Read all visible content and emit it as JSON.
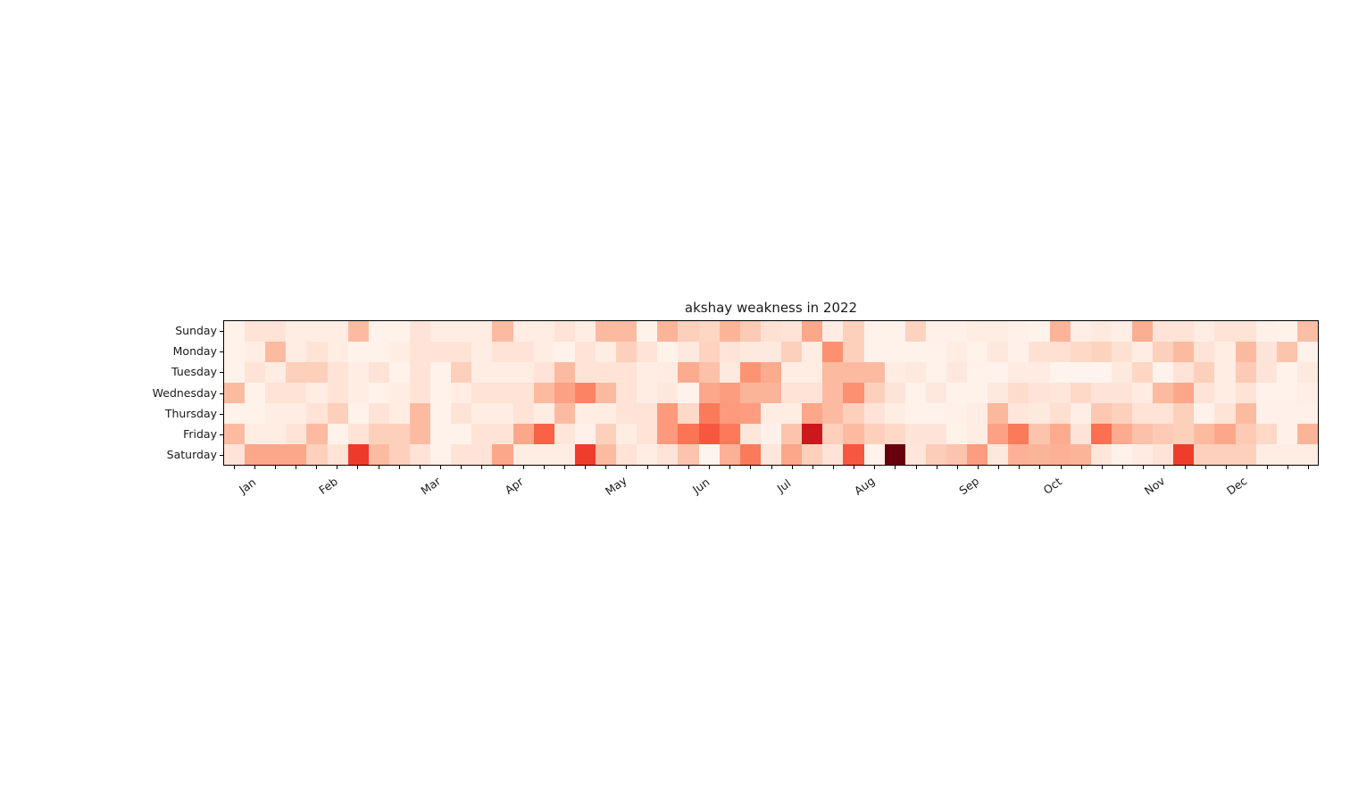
{
  "page": {
    "background_color": "#ffffff",
    "text_color": "#1a1a1a",
    "axis_color": "#000000"
  },
  "chart_data": {
    "type": "heatmap",
    "title": "akshay weakness in 2022",
    "colormap": "Reds",
    "colormap_anchors": [
      "#fff5f0",
      "#fee0d2",
      "#fcbba1",
      "#fc9272",
      "#fb6a4a",
      "#ef3b2c",
      "#cb181d",
      "#a50f15",
      "#67000d"
    ],
    "value_range": [
      0,
      1
    ],
    "grid": false,
    "rows": [
      "Sunday",
      "Monday",
      "Tuesday",
      "Wednesday",
      "Thursday",
      "Friday",
      "Saturday"
    ],
    "num_week_columns": 53,
    "x_tick_labels": [
      {
        "label": "Jan",
        "week": 1.34
      },
      {
        "label": "Feb",
        "week": 5.27
      },
      {
        "label": "Mar",
        "week": 10.24
      },
      {
        "label": "Apr",
        "week": 14.25
      },
      {
        "label": "May",
        "week": 19.22
      },
      {
        "label": "Jun",
        "week": 23.28
      },
      {
        "label": "Jul",
        "week": 27.26
      },
      {
        "label": "Aug",
        "week": 31.23
      },
      {
        "label": "Sep",
        "week": 36.28
      },
      {
        "label": "Oct",
        "week": 40.3
      },
      {
        "label": "Nov",
        "week": 45.27
      },
      {
        "label": "Dec",
        "week": 49.24
      }
    ],
    "matrix": [
      [
        0.02,
        0.11,
        0.11,
        0.05,
        0.05,
        0.05,
        0.25,
        0.02,
        0.02,
        0.11,
        0.05,
        0.05,
        0.05,
        0.25,
        0.05,
        0.05,
        0.11,
        0.05,
        0.25,
        0.25,
        0.02,
        0.27,
        0.18,
        0.16,
        0.27,
        0.2,
        0.12,
        0.11,
        0.31,
        0.05,
        0.18,
        0.02,
        0.02,
        0.17,
        0.03,
        0.03,
        0.05,
        0.05,
        0.03,
        0.02,
        0.27,
        0.04,
        0.07,
        0.04,
        0.29,
        0.11,
        0.11,
        0.05,
        0.11,
        0.11,
        0.03,
        0.02,
        0.24
      ],
      [
        0.02,
        0.05,
        0.25,
        0.05,
        0.11,
        0.05,
        0.02,
        0.02,
        0.05,
        0.11,
        0.11,
        0.11,
        0.05,
        0.11,
        0.11,
        0.05,
        0.02,
        0.11,
        0.05,
        0.18,
        0.11,
        0.02,
        0.07,
        0.17,
        0.1,
        0.07,
        0.07,
        0.18,
        0.05,
        0.38,
        0.18,
        0.02,
        0.02,
        0.02,
        0.02,
        0.05,
        0.02,
        0.08,
        0.03,
        0.12,
        0.12,
        0.15,
        0.17,
        0.12,
        0.05,
        0.18,
        0.25,
        0.11,
        0.05,
        0.25,
        0.1,
        0.22,
        0.02
      ],
      [
        0.02,
        0.11,
        0.05,
        0.18,
        0.18,
        0.11,
        0.05,
        0.11,
        0.02,
        0.11,
        0.02,
        0.18,
        0.05,
        0.05,
        0.05,
        0.11,
        0.25,
        0.11,
        0.11,
        0.11,
        0.05,
        0.06,
        0.3,
        0.23,
        0.07,
        0.37,
        0.3,
        0.05,
        0.05,
        0.25,
        0.25,
        0.25,
        0.05,
        0.07,
        0.02,
        0.08,
        0.02,
        0.02,
        0.06,
        0.06,
        0.01,
        0.01,
        0.01,
        0.07,
        0.16,
        0.02,
        0.11,
        0.18,
        0.05,
        0.2,
        0.1,
        0.02,
        0.07
      ],
      [
        0.25,
        0.02,
        0.11,
        0.11,
        0.05,
        0.11,
        0.05,
        0.02,
        0.05,
        0.11,
        0.02,
        0.05,
        0.11,
        0.11,
        0.11,
        0.25,
        0.33,
        0.42,
        0.25,
        0.11,
        0.05,
        0.08,
        0.02,
        0.31,
        0.34,
        0.27,
        0.27,
        0.11,
        0.11,
        0.25,
        0.38,
        0.18,
        0.1,
        0.02,
        0.08,
        0.02,
        0.02,
        0.07,
        0.14,
        0.1,
        0.09,
        0.15,
        0.1,
        0.1,
        0.06,
        0.25,
        0.31,
        0.11,
        0.05,
        0.11,
        0.02,
        0.02,
        0.04
      ],
      [
        0.02,
        0.02,
        0.05,
        0.05,
        0.11,
        0.18,
        0.02,
        0.11,
        0.05,
        0.25,
        0.02,
        0.11,
        0.05,
        0.05,
        0.11,
        0.05,
        0.25,
        0.05,
        0.05,
        0.11,
        0.11,
        0.35,
        0.15,
        0.45,
        0.35,
        0.34,
        0.05,
        0.05,
        0.31,
        0.25,
        0.18,
        0.11,
        0.05,
        0.02,
        0.02,
        0.03,
        0.05,
        0.26,
        0.09,
        0.07,
        0.13,
        0.04,
        0.21,
        0.18,
        0.11,
        0.11,
        0.18,
        0.02,
        0.11,
        0.25,
        0.03,
        0.03,
        0.03
      ],
      [
        0.25,
        0.05,
        0.05,
        0.11,
        0.25,
        0.02,
        0.11,
        0.18,
        0.18,
        0.25,
        0.02,
        0.02,
        0.11,
        0.11,
        0.31,
        0.52,
        0.09,
        0.03,
        0.18,
        0.05,
        0.11,
        0.35,
        0.47,
        0.55,
        0.45,
        0.09,
        0.03,
        0.22,
        0.75,
        0.18,
        0.25,
        0.18,
        0.15,
        0.1,
        0.1,
        0.02,
        0.05,
        0.33,
        0.45,
        0.22,
        0.3,
        0.1,
        0.48,
        0.3,
        0.23,
        0.2,
        0.18,
        0.25,
        0.31,
        0.2,
        0.15,
        0.03,
        0.27
      ],
      [
        0.11,
        0.31,
        0.31,
        0.31,
        0.18,
        0.11,
        0.63,
        0.25,
        0.18,
        0.11,
        0.02,
        0.11,
        0.11,
        0.31,
        0.05,
        0.05,
        0.05,
        0.62,
        0.25,
        0.11,
        0.05,
        0.1,
        0.22,
        0.01,
        0.28,
        0.45,
        0.09,
        0.31,
        0.18,
        0.11,
        0.55,
        0.02,
        1.0,
        0.09,
        0.19,
        0.22,
        0.34,
        0.08,
        0.28,
        0.27,
        0.28,
        0.27,
        0.09,
        0.02,
        0.06,
        0.11,
        0.62,
        0.18,
        0.18,
        0.18,
        0.05,
        0.05,
        0.05
      ]
    ]
  }
}
